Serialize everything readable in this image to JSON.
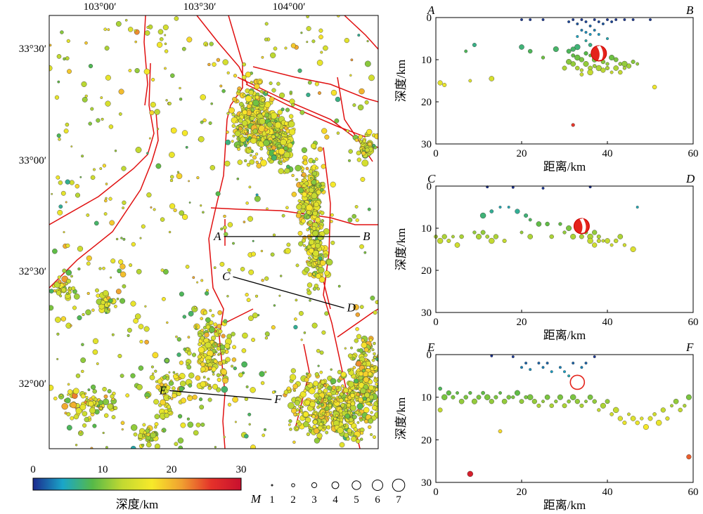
{
  "map": {
    "lon_ticks": [
      "103°00′",
      "103°30′",
      "104°00′"
    ],
    "lat_ticks": [
      "33°30′",
      "33°00′",
      "32°30′",
      "32°00′"
    ],
    "lon_range": [
      102.85,
      104.3
    ],
    "lat_range": [
      31.78,
      33.72
    ],
    "profile_lines": [
      {
        "start": "A",
        "end": "B",
        "from": [
          103.62,
          32.73
        ],
        "to": [
          104.22,
          32.73
        ]
      },
      {
        "start": "C",
        "end": "D",
        "from": [
          103.66,
          32.55
        ],
        "to": [
          104.15,
          32.41
        ]
      },
      {
        "start": "E",
        "end": "F",
        "from": [
          103.38,
          32.04
        ],
        "to": [
          103.83,
          32.0
        ]
      }
    ],
    "depth_colorbar": {
      "ticks": [
        "0",
        "10",
        "20",
        "30"
      ],
      "range": [
        0,
        30
      ],
      "label": "深度/km",
      "colors": [
        "#1b2a8e",
        "#1aa6c8",
        "#56b948",
        "#c2d931",
        "#f7e92a",
        "#f0a030",
        "#e4312a",
        "#c8102e"
      ]
    },
    "magnitude_legend": {
      "label": "M",
      "values": [
        "1",
        "2",
        "3",
        "4",
        "5",
        "6",
        "7"
      ]
    }
  },
  "chart_data": [
    {
      "type": "scatter",
      "title": "",
      "corner_left": "A",
      "corner_right": "B",
      "xlabel": "距离/km",
      "ylabel": "深度/km",
      "xlim": [
        0,
        60
      ],
      "ylim": [
        30,
        0
      ],
      "xticks": [
        "0",
        "20",
        "40",
        "60"
      ],
      "yticks": [
        "0",
        "10",
        "20",
        "30"
      ],
      "mainshock": {
        "x": 38,
        "y": 8.5
      },
      "points": [
        [
          20,
          0.5
        ],
        [
          22,
          0.5
        ],
        [
          25,
          0.5
        ],
        [
          31,
          1
        ],
        [
          32,
          0.5
        ],
        [
          33,
          1.5
        ],
        [
          34,
          0.5
        ],
        [
          35,
          1
        ],
        [
          36,
          2
        ],
        [
          37,
          0.5
        ],
        [
          38,
          1
        ],
        [
          39,
          1.5
        ],
        [
          40,
          0.5
        ],
        [
          41,
          1
        ],
        [
          42,
          0.5
        ],
        [
          44,
          0.5
        ],
        [
          46,
          0.5
        ],
        [
          50,
          0.5
        ],
        [
          34,
          3
        ],
        [
          35,
          3.5
        ],
        [
          36,
          4
        ],
        [
          37,
          3
        ],
        [
          33,
          4.5
        ],
        [
          38,
          4
        ],
        [
          40,
          5
        ],
        [
          35,
          5.5
        ],
        [
          36,
          6.5
        ],
        [
          33,
          7
        ],
        [
          32,
          7.5
        ],
        [
          9,
          6.5
        ],
        [
          7,
          8
        ],
        [
          20,
          7
        ],
        [
          22,
          8
        ],
        [
          25,
          9.5
        ],
        [
          28,
          7.5
        ],
        [
          31,
          8
        ],
        [
          32,
          9
        ],
        [
          33,
          9.5
        ],
        [
          34,
          10
        ],
        [
          35,
          8.5
        ],
        [
          36,
          9
        ],
        [
          37,
          10
        ],
        [
          39,
          10.5
        ],
        [
          40,
          11
        ],
        [
          41,
          9.5
        ],
        [
          42,
          10
        ],
        [
          43,
          11
        ],
        [
          44,
          11
        ],
        [
          45,
          11.5
        ],
        [
          46,
          10.5
        ],
        [
          47,
          11
        ],
        [
          32,
          11
        ],
        [
          33,
          12
        ],
        [
          34,
          12.5
        ],
        [
          35,
          11
        ],
        [
          36,
          12
        ],
        [
          37,
          11.5
        ],
        [
          38,
          12
        ],
        [
          39,
          12.5
        ],
        [
          40,
          12
        ],
        [
          41,
          13
        ],
        [
          42,
          12
        ],
        [
          43,
          13
        ],
        [
          44,
          12
        ],
        [
          31,
          10.5
        ],
        [
          30,
          12
        ],
        [
          34,
          13.5
        ],
        [
          36,
          13
        ],
        [
          1,
          15.5
        ],
        [
          2,
          16
        ],
        [
          8,
          15
        ],
        [
          13,
          14.5
        ],
        [
          51,
          16.5
        ],
        [
          32,
          25.5
        ]
      ]
    },
    {
      "type": "scatter",
      "title": "",
      "corner_left": "C",
      "corner_right": "D",
      "xlabel": "距离/km",
      "ylabel": "深度/km",
      "xlim": [
        0,
        60
      ],
      "ylim": [
        30,
        0
      ],
      "xticks": [
        "0",
        "20",
        "40",
        "60"
      ],
      "yticks": [
        "0",
        "10",
        "20",
        "30"
      ],
      "mainshock": {
        "x": 34,
        "y": 9.5
      },
      "points": [
        [
          12,
          0.2
        ],
        [
          18,
          0.3
        ],
        [
          25,
          0.5
        ],
        [
          36,
          0.2
        ],
        [
          15,
          5
        ],
        [
          17,
          5
        ],
        [
          13,
          6
        ],
        [
          11,
          7
        ],
        [
          19,
          6
        ],
        [
          21,
          7
        ],
        [
          22,
          8
        ],
        [
          24,
          9
        ],
        [
          26,
          9
        ],
        [
          29,
          9
        ],
        [
          31,
          10
        ],
        [
          33,
          10
        ],
        [
          35,
          11
        ],
        [
          36,
          12
        ],
        [
          37,
          11
        ],
        [
          38,
          12
        ],
        [
          39,
          13
        ],
        [
          40,
          13
        ],
        [
          42,
          13
        ],
        [
          44,
          14
        ],
        [
          46,
          15
        ],
        [
          47,
          5
        ],
        [
          0,
          12
        ],
        [
          1,
          13
        ],
        [
          2,
          12
        ],
        [
          3,
          13
        ],
        [
          4,
          12
        ],
        [
          5,
          14
        ],
        [
          6,
          12
        ],
        [
          9,
          11
        ],
        [
          10,
          12
        ],
        [
          11,
          11
        ],
        [
          12,
          12
        ],
        [
          13,
          13
        ],
        [
          14,
          12
        ],
        [
          16,
          13
        ],
        [
          20,
          11
        ],
        [
          22,
          12
        ],
        [
          27,
          12
        ],
        [
          30,
          11
        ],
        [
          32,
          12
        ],
        [
          34,
          12
        ],
        [
          35,
          10
        ],
        [
          36,
          13
        ],
        [
          37,
          14
        ],
        [
          38,
          13
        ],
        [
          41,
          14
        ],
        [
          43,
          12
        ]
      ]
    },
    {
      "type": "scatter",
      "title": "",
      "corner_left": "E",
      "corner_right": "F",
      "xlabel": "距离/km",
      "ylabel": "深度/km",
      "xlim": [
        0,
        60
      ],
      "ylim": [
        30,
        0
      ],
      "xticks": [
        "0",
        "20",
        "40",
        "60"
      ],
      "yticks": [
        "0",
        "10",
        "20",
        "30"
      ],
      "mainshock": {
        "x": 33,
        "y": 6.5
      },
      "points": [
        [
          13,
          0.3
        ],
        [
          18,
          0.5
        ],
        [
          20,
          3
        ],
        [
          21,
          2
        ],
        [
          22,
          3.5
        ],
        [
          24,
          2
        ],
        [
          25,
          3
        ],
        [
          26,
          2
        ],
        [
          27,
          4
        ],
        [
          29,
          3
        ],
        [
          30,
          4
        ],
        [
          31,
          5
        ],
        [
          32,
          2
        ],
        [
          34,
          3
        ],
        [
          35,
          2
        ],
        [
          37,
          0.5
        ],
        [
          1,
          8
        ],
        [
          2,
          10
        ],
        [
          3,
          9
        ],
        [
          4,
          10
        ],
        [
          5,
          9
        ],
        [
          6,
          11
        ],
        [
          7,
          10
        ],
        [
          8,
          9
        ],
        [
          9,
          11
        ],
        [
          10,
          10
        ],
        [
          11,
          9
        ],
        [
          12,
          10
        ],
        [
          13,
          11
        ],
        [
          14,
          10
        ],
        [
          15,
          9
        ],
        [
          16,
          11
        ],
        [
          17,
          10
        ],
        [
          18,
          10
        ],
        [
          19,
          9
        ],
        [
          20,
          11
        ],
        [
          21,
          10
        ],
        [
          22,
          10
        ],
        [
          23,
          11
        ],
        [
          24,
          12
        ],
        [
          25,
          11
        ],
        [
          26,
          10
        ],
        [
          27,
          12
        ],
        [
          28,
          11
        ],
        [
          29,
          10
        ],
        [
          30,
          12
        ],
        [
          31,
          11
        ],
        [
          32,
          10
        ],
        [
          33,
          11
        ],
        [
          34,
          12
        ],
        [
          35,
          11
        ],
        [
          36,
          10
        ],
        [
          37,
          11
        ],
        [
          38,
          13
        ],
        [
          39,
          12
        ],
        [
          40,
          11
        ],
        [
          41,
          14
        ],
        [
          42,
          13
        ],
        [
          43,
          15
        ],
        [
          44,
          16
        ],
        [
          45,
          14
        ],
        [
          46,
          15
        ],
        [
          47,
          16
        ],
        [
          48,
          15
        ],
        [
          49,
          17
        ],
        [
          50,
          15
        ],
        [
          51,
          14
        ],
        [
          52,
          16
        ],
        [
          53,
          13
        ],
        [
          54,
          15
        ],
        [
          55,
          12
        ],
        [
          56,
          11
        ],
        [
          57,
          13
        ],
        [
          58,
          12
        ],
        [
          59,
          10
        ],
        [
          1,
          13
        ],
        [
          15,
          18
        ],
        [
          8,
          28
        ],
        [
          59,
          24
        ]
      ]
    }
  ]
}
